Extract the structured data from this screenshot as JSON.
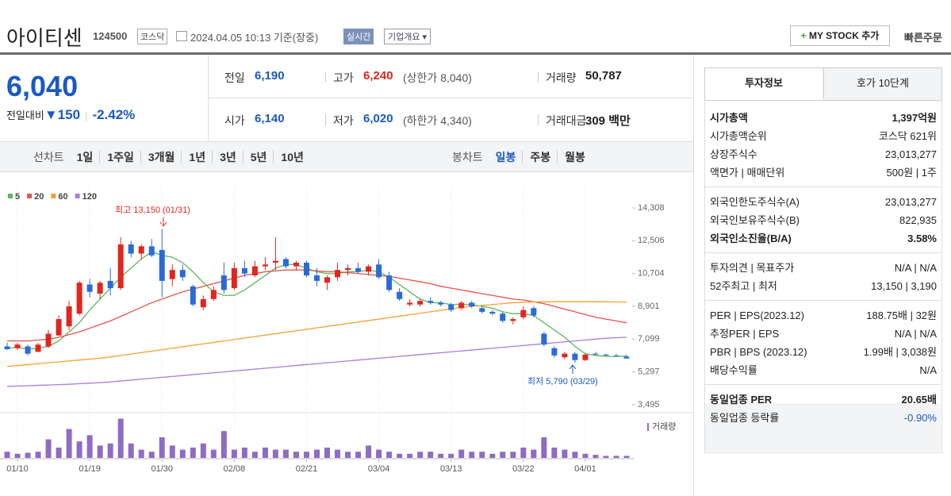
{
  "header": {
    "title": "아이티센",
    "code": "124500",
    "market": "코스닥",
    "timestamp": "2024.04.05 10:13 기준(장중)",
    "realtime": "실시간",
    "company": "기업개요",
    "mystock": "MY STOCK 추가",
    "quick_order": "빠른주문"
  },
  "price": {
    "current": "6,040",
    "change_label": "전일대비",
    "change": "150",
    "change_pct": "-2.42%"
  },
  "info": [
    [
      {
        "label": "전일",
        "value": "6,190"
      },
      {
        "label": "고가",
        "value": "6,240",
        "note": "(상한가 8,040)"
      },
      {
        "label": "거래량",
        "value": "50,787"
      }
    ],
    [
      {
        "label": "시가",
        "value": "6,140"
      },
      {
        "label": "저가",
        "value": "6,020",
        "note": "(하한가 4,340)"
      },
      {
        "label": "거래대금",
        "value": "309 백만"
      }
    ]
  ],
  "period_tabs": {
    "label": "선차트",
    "items": [
      "1일",
      "1주일",
      "3개월",
      "1년",
      "3년",
      "5년",
      "10년"
    ]
  },
  "candle_tabs": {
    "label": "봉차트",
    "items": [
      "일봉",
      "주봉",
      "월봉"
    ],
    "active": 0
  },
  "chart_data": {
    "type": "candlestick",
    "categories": [
      null,
      "01/10",
      null,
      null,
      null,
      null,
      null,
      null,
      "01/19",
      null,
      null,
      null,
      null,
      null,
      null,
      "01/30",
      null,
      null,
      null,
      null,
      null,
      null,
      "02/08",
      null,
      null,
      null,
      null,
      null,
      null,
      "02/21",
      null,
      null,
      null,
      null,
      null,
      null,
      "03/04",
      null,
      null,
      null,
      null,
      null,
      null,
      "03/13",
      null,
      null,
      null,
      null,
      null,
      null,
      "03/22",
      null,
      null,
      null,
      null,
      null,
      "04/01",
      null,
      null,
      null,
      null
    ],
    "open": [
      6700,
      6600,
      6700,
      6400,
      6700,
      7300,
      7800,
      8500,
      10100,
      9600,
      10300,
      9900,
      12300,
      11800,
      12200,
      12000,
      10400,
      10900,
      10000,
      8850,
      9300,
      10600,
      9900,
      11000,
      10600,
      11100,
      11300,
      11500,
      11100,
      11300,
      10600,
      10200,
      10500,
      10900,
      11000,
      10800,
      11200,
      10600,
      9700,
      9000,
      9000,
      9200,
      9100,
      9000,
      8800,
      9100,
      8800,
      8600,
      8500,
      8100,
      8300,
      8800,
      7400,
      6600,
      6100,
      6300,
      5950,
      6300,
      6250,
      6200,
      6140
    ],
    "high": [
      6900,
      6900,
      6800,
      6900,
      7600,
      8400,
      9200,
      10300,
      10400,
      10300,
      11000,
      12700,
      12500,
      12300,
      12600,
      13150,
      11200,
      11200,
      10100,
      9500,
      10000,
      11300,
      11300,
      11400,
      11400,
      11600,
      12700,
      11600,
      11400,
      11400,
      11000,
      10600,
      11300,
      11200,
      11300,
      11200,
      11500,
      10800,
      9900,
      9300,
      9300,
      9400,
      9200,
      9100,
      9200,
      9200,
      8900,
      8700,
      8600,
      8300,
      8900,
      8900,
      7500,
      6700,
      6400,
      6400,
      6300,
      6400,
      6300,
      6300,
      6240
    ],
    "low": [
      6500,
      6500,
      6200,
      6400,
      6600,
      7300,
      7600,
      8400,
      9400,
      9300,
      9500,
      9800,
      11600,
      11500,
      11600,
      9400,
      10000,
      10300,
      8900,
      8700,
      9200,
      9600,
      9800,
      10500,
      10500,
      10900,
      10900,
      11000,
      10900,
      10500,
      10000,
      9800,
      10300,
      10600,
      10700,
      10600,
      10400,
      9700,
      9200,
      8900,
      8900,
      9000,
      8900,
      8600,
      8700,
      8800,
      8500,
      8400,
      8000,
      7900,
      8200,
      8300,
      6700,
      6100,
      6000,
      5790,
      5900,
      6200,
      6150,
      6150,
      6020
    ],
    "close": [
      6550,
      6800,
      6300,
      6800,
      7400,
      8200,
      8900,
      10200,
      9700,
      10200,
      9900,
      12300,
      11800,
      12200,
      11700,
      10300,
      10900,
      10500,
      9000,
      9300,
      9800,
      9800,
      11000,
      10700,
      11100,
      11200,
      11400,
      11100,
      11300,
      10600,
      10300,
      10500,
      10900,
      11000,
      10800,
      11100,
      10500,
      9800,
      9300,
      9100,
      9200,
      9100,
      9000,
      8700,
      9100,
      8900,
      8600,
      8500,
      8100,
      8200,
      8700,
      8400,
      6800,
      6200,
      6300,
      5950,
      6250,
      6250,
      6200,
      6190,
      6040
    ],
    "up_color": "#e0261f",
    "down_color": "#2a6bd6",
    "ylim": [
      3495,
      14308
    ],
    "yticks": [
      {
        "value": 14308,
        "label": "14,308"
      },
      {
        "value": 12506,
        "label": "12,506"
      },
      {
        "value": 10704,
        "label": "10,704"
      },
      {
        "value": 8901,
        "label": "8,901"
      },
      {
        "value": 7099,
        "label": "7,099"
      },
      {
        "value": 5297,
        "label": "5,297"
      },
      {
        "value": 3495,
        "label": "3,495"
      }
    ],
    "series": [
      {
        "name": "5",
        "color": "#5cb85c",
        "values": [
          6600,
          6650,
          6550,
          6600,
          6700,
          7000,
          7500,
          8000,
          8700,
          9300,
          9900,
          10500,
          11000,
          11500,
          11900,
          11700,
          11600,
          11300,
          10800,
          10200,
          9700,
          9500,
          9500,
          9800,
          10200,
          10600,
          11000,
          11200,
          11200,
          11000,
          10800,
          10700,
          10700,
          10800,
          10800,
          10900,
          10800,
          10500,
          10100,
          9700,
          9300,
          9100,
          9100,
          9000,
          9000,
          9000,
          8900,
          8800,
          8600,
          8500,
          8500,
          8400,
          8000,
          7600,
          7200,
          6700,
          6300,
          6200,
          6150,
          6150,
          6170
        ]
      },
      {
        "name": "20",
        "color": "#e5534b",
        "values": [
          7000,
          7000,
          7000,
          7050,
          7100,
          7200,
          7350,
          7500,
          7700,
          7900,
          8100,
          8350,
          8600,
          8850,
          9100,
          9300,
          9500,
          9700,
          9850,
          10000,
          10150,
          10300,
          10450,
          10600,
          10700,
          10800,
          10850,
          10900,
          10900,
          10900,
          10850,
          10800,
          10800,
          10750,
          10700,
          10650,
          10600,
          10550,
          10450,
          10350,
          10250,
          10150,
          10000,
          9900,
          9800,
          9700,
          9600,
          9500,
          9400,
          9300,
          9250,
          9150,
          9050,
          8900,
          8750,
          8600,
          8450,
          8300,
          8200,
          8100,
          8000
        ]
      },
      {
        "name": "60",
        "color": "#f5a033",
        "values": [
          5600,
          5650,
          5700,
          5750,
          5800,
          5850,
          5900,
          5950,
          6000,
          6050,
          6120,
          6200,
          6280,
          6360,
          6440,
          6520,
          6600,
          6680,
          6760,
          6840,
          6920,
          7000,
          7080,
          7160,
          7240,
          7320,
          7400,
          7480,
          7560,
          7640,
          7720,
          7800,
          7880,
          7960,
          8040,
          8120,
          8200,
          8280,
          8360,
          8440,
          8520,
          8600,
          8680,
          8760,
          8840,
          8900,
          8950,
          9000,
          9050,
          9100,
          9120,
          9140,
          9150,
          9160,
          9160,
          9160,
          9160,
          9150,
          9150,
          9140,
          9140
        ]
      },
      {
        "name": "120",
        "color": "#a77de0",
        "values": [
          4500,
          4520,
          4540,
          4560,
          4580,
          4600,
          4620,
          4650,
          4680,
          4710,
          4750,
          4800,
          4850,
          4900,
          4950,
          5000,
          5050,
          5100,
          5150,
          5200,
          5250,
          5300,
          5350,
          5400,
          5450,
          5500,
          5550,
          5600,
          5650,
          5700,
          5750,
          5800,
          5850,
          5900,
          5950,
          6000,
          6050,
          6100,
          6150,
          6200,
          6250,
          6300,
          6350,
          6400,
          6450,
          6500,
          6550,
          6600,
          6650,
          6700,
          6750,
          6800,
          6850,
          6900,
          6950,
          7000,
          7050,
          7100,
          7150,
          7180,
          7200
        ]
      }
    ],
    "volume": {
      "name": "거래량",
      "color": "#8e6cc4",
      "ylim": [
        0,
        2000
      ],
      "values": [
        300,
        200,
        250,
        300,
        900,
        500,
        1400,
        800,
        1100,
        600,
        700,
        1900,
        700,
        400,
        300,
        1000,
        600,
        400,
        500,
        700,
        400,
        1300,
        400,
        500,
        300,
        500,
        400,
        400,
        300,
        300,
        400,
        500,
        400,
        300,
        300,
        600,
        400,
        300,
        200,
        200,
        300,
        300,
        200,
        200,
        400,
        300,
        300,
        200,
        300,
        300,
        500,
        400,
        1000,
        500,
        400,
        300,
        200,
        150,
        100,
        100,
        100
      ]
    },
    "annotations": [
      "최고 13,150 (01/31)",
      "최저 5,790 (03/29)"
    ]
  },
  "right_panel": {
    "tabs": [
      "투자정보",
      "호가 10단계"
    ],
    "groups": [
      [
        {
          "label": "시가총액",
          "value": "1,397억원"
        },
        {
          "label": "시가총액순위",
          "value": "코스닥 621위"
        },
        {
          "label": "상장주식수",
          "value": "23,013,277"
        },
        {
          "label": "액면가 | 매매단위",
          "value": "500원 | 1주"
        }
      ],
      [
        {
          "label": "외국인한도주식수(A)",
          "value": "23,013,277"
        },
        {
          "label": "외국인보유주식수(B)",
          "value": "822,935"
        },
        {
          "label": "외국인소진율(B/A)",
          "value": "3.58%"
        }
      ],
      [
        {
          "label": "투자의견 | 목표주가",
          "value": "N/A | N/A"
        },
        {
          "label": "52주최고 | 최저",
          "value": "13,150 | 3,190"
        }
      ],
      [
        {
          "label": "PER | EPS(2023.12)",
          "value": "188.75배 | 32원"
        },
        {
          "label": "추정PER | EPS",
          "value": "N/A | N/A"
        },
        {
          "label": "PBR | BPS (2023.12)",
          "value": "1.99배 | 3,038원"
        },
        {
          "label": "배당수익률",
          "value": "N/A"
        }
      ],
      [
        {
          "label": "동일업종 PER",
          "value": "20.65배"
        },
        {
          "label": "동일업종 등락률",
          "value": "-0.90%"
        }
      ]
    ]
  }
}
